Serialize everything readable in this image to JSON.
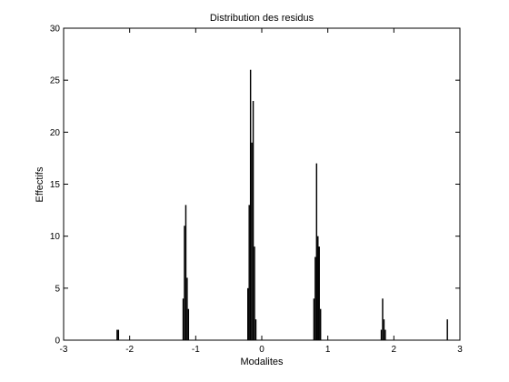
{
  "chart_data": {
    "type": "bar",
    "title": "Distribution des residus",
    "xlabel": "Modalites",
    "ylabel": "Effectifs",
    "xlim": [
      -3,
      3
    ],
    "ylim": [
      0,
      30
    ],
    "xticks": [
      -3,
      -2,
      -1,
      0,
      1,
      2,
      3
    ],
    "yticks": [
      0,
      5,
      10,
      15,
      20,
      25,
      30
    ],
    "grid": false,
    "bar_color": "#000000",
    "bin_width": 0.02,
    "bins": [
      {
        "x": -2.19,
        "y": 1
      },
      {
        "x": -2.17,
        "y": 1
      },
      {
        "x": -1.19,
        "y": 4
      },
      {
        "x": -1.17,
        "y": 11
      },
      {
        "x": -1.15,
        "y": 13
      },
      {
        "x": -1.13,
        "y": 6
      },
      {
        "x": -1.11,
        "y": 3
      },
      {
        "x": -0.21,
        "y": 5
      },
      {
        "x": -0.19,
        "y": 13
      },
      {
        "x": -0.17,
        "y": 26
      },
      {
        "x": -0.15,
        "y": 19
      },
      {
        "x": -0.13,
        "y": 23
      },
      {
        "x": -0.11,
        "y": 9
      },
      {
        "x": -0.09,
        "y": 2
      },
      {
        "x": 0.79,
        "y": 4
      },
      {
        "x": 0.81,
        "y": 8
      },
      {
        "x": 0.83,
        "y": 17
      },
      {
        "x": 0.85,
        "y": 10
      },
      {
        "x": 0.87,
        "y": 9
      },
      {
        "x": 0.89,
        "y": 3
      },
      {
        "x": 1.81,
        "y": 1
      },
      {
        "x": 1.83,
        "y": 4
      },
      {
        "x": 1.85,
        "y": 2
      },
      {
        "x": 1.87,
        "y": 1
      },
      {
        "x": 2.81,
        "y": 2
      }
    ]
  }
}
